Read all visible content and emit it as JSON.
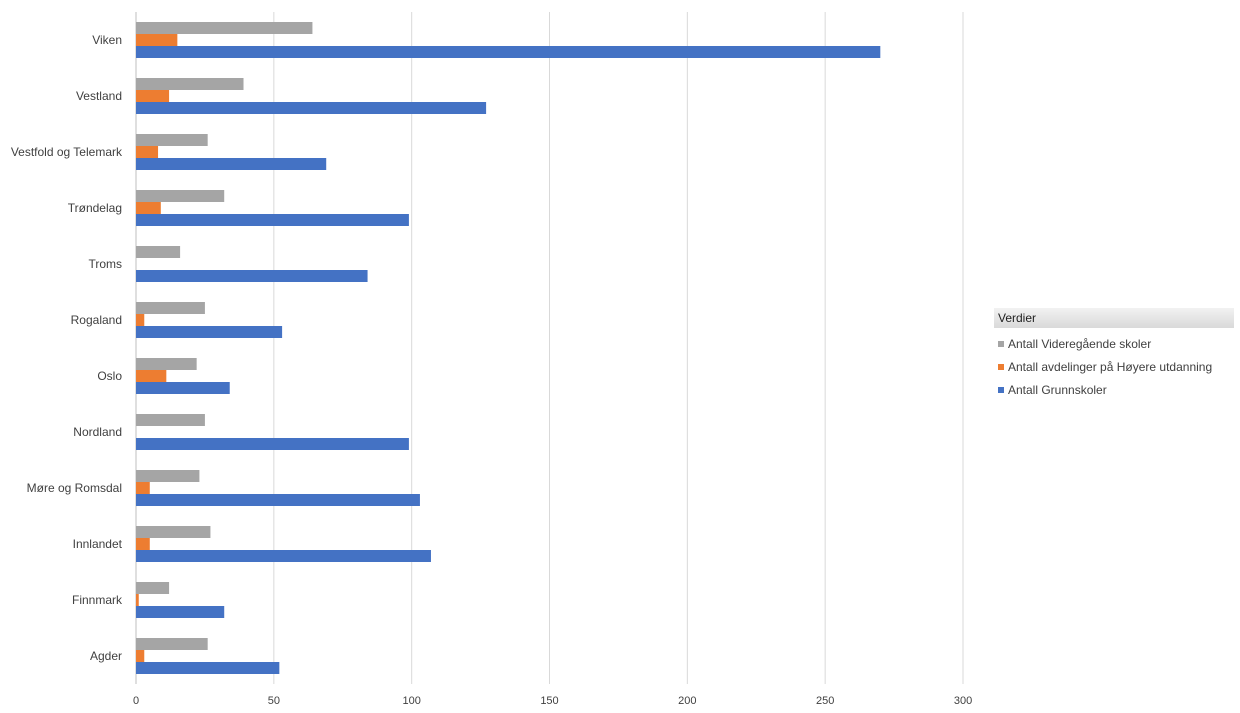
{
  "chart_data": {
    "type": "bar",
    "orientation": "horizontal",
    "categories": [
      "Viken",
      "Vestland",
      "Vestfold og Telemark",
      "Trøndelag",
      "Troms",
      "Rogaland",
      "Oslo",
      "Nordland",
      "Møre og Romsdal",
      "Innlandet",
      "Finnmark",
      "Agder"
    ],
    "series": [
      {
        "name": "Antall Videregående skoler",
        "color": "#a5a5a5",
        "values": [
          64,
          39,
          26,
          32,
          16,
          25,
          22,
          25,
          23,
          27,
          12,
          26
        ]
      },
      {
        "name": "Antall avdelinger på Høyere utdanning",
        "color": "#ed7d31",
        "values": [
          15,
          12,
          8,
          9,
          0,
          3,
          11,
          0,
          5,
          5,
          1,
          3
        ]
      },
      {
        "name": "Antall Grunnskoler",
        "color": "#4472c4",
        "values": [
          270,
          127,
          69,
          99,
          84,
          53,
          34,
          99,
          103,
          107,
          32,
          52
        ]
      }
    ],
    "xlim": [
      0,
      300
    ],
    "xticks": [
      "0",
      "50",
      "100",
      "150",
      "200",
      "250",
      "300"
    ],
    "grid": true,
    "legend": {
      "title": "Verdier",
      "placement": "right"
    }
  }
}
